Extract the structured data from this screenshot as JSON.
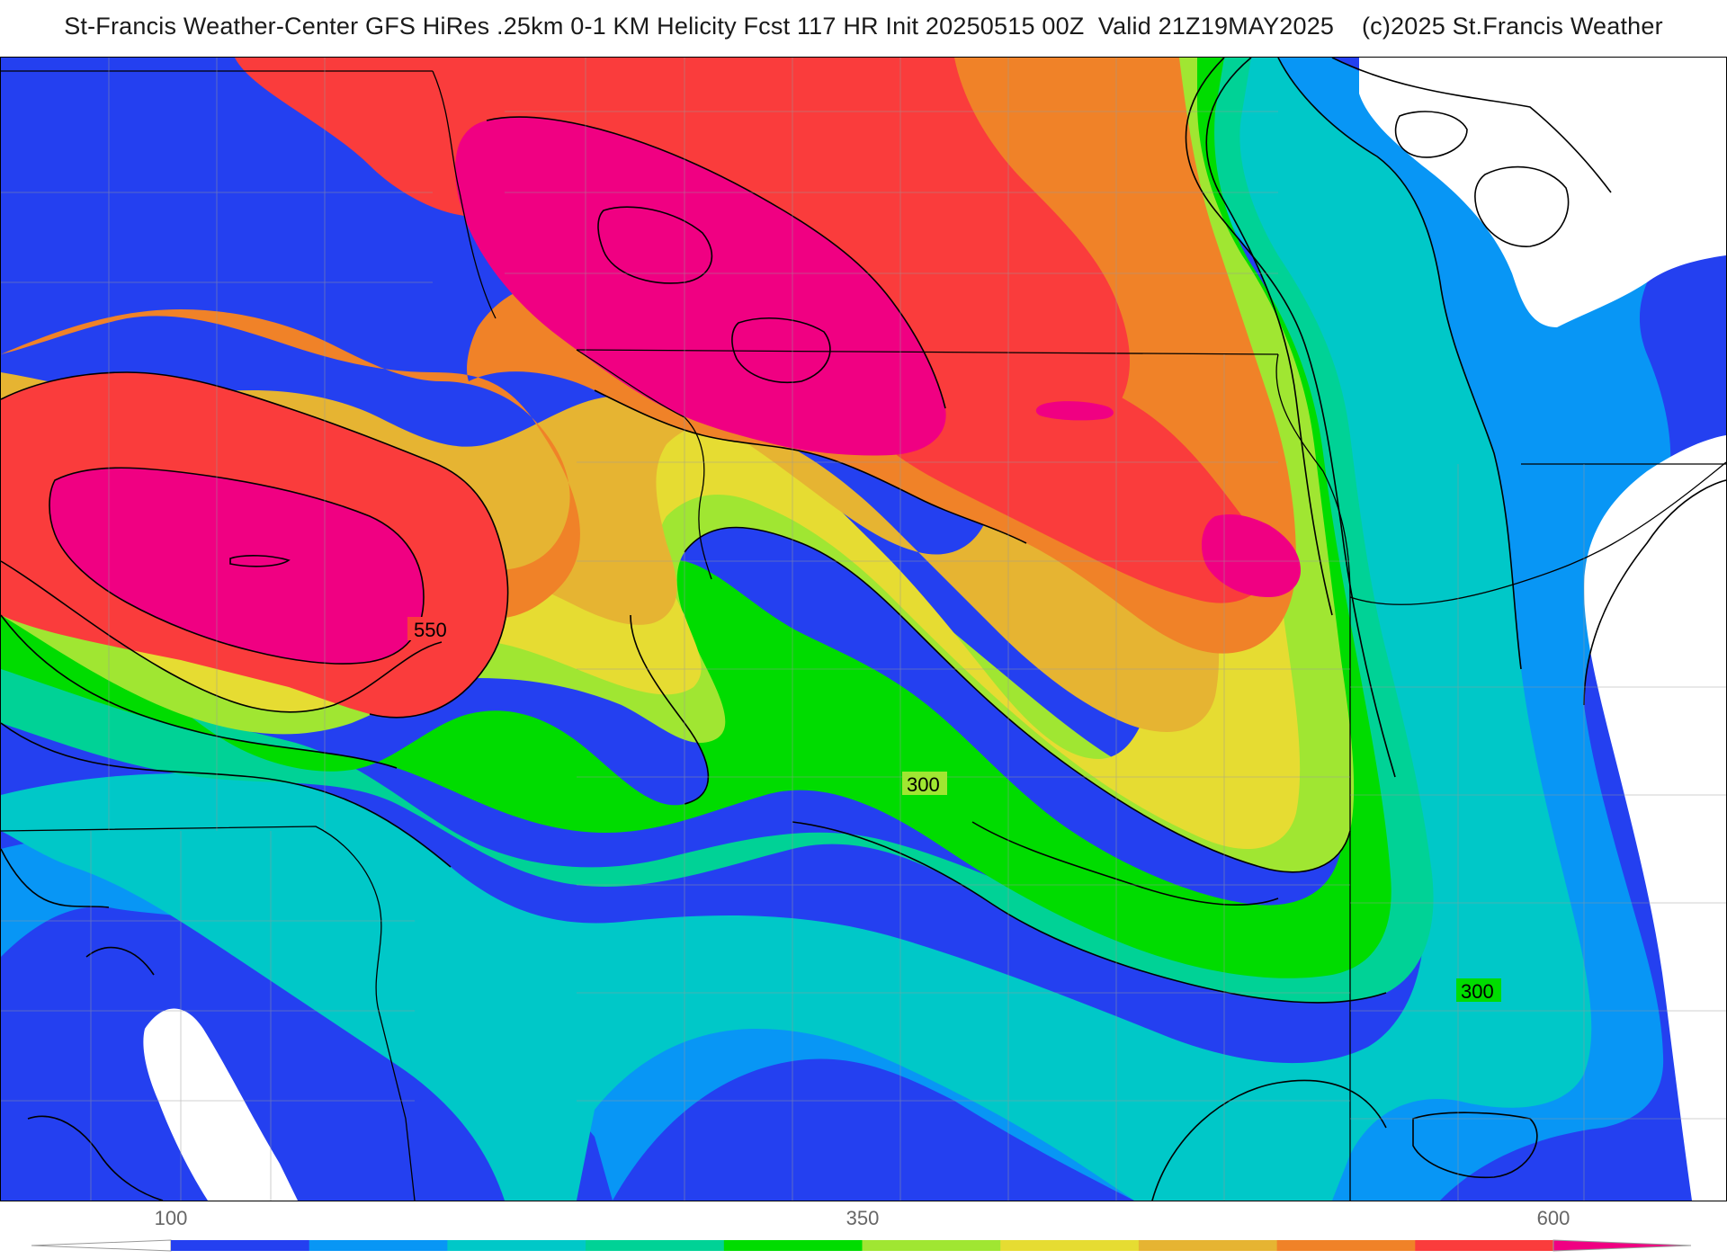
{
  "title": "St-Francis Weather-Center GFS HiRes .25km 0-1 KM Helicity Fcst 117 HR Init 20250515 00Z  Valid 21Z19MAY2025    (c)2025 St.Francis Weather",
  "map": {
    "field": "0-1 KM Helicity",
    "contour_labels": [
      "550",
      "300",
      "300"
    ]
  },
  "legend": {
    "tick_labels": [
      "100",
      "350",
      "600"
    ],
    "colors": [
      "#2440f0",
      "#0896f5",
      "#00c8c8",
      "#00d296",
      "#00dc00",
      "#a0e632",
      "#e6dc32",
      "#e6b432",
      "#f08228",
      "#fa3c3c",
      "#f00082"
    ]
  },
  "colors": {
    "out_of_range": "#ffffff",
    "state_lines": "#000000",
    "county_lines": "#999999"
  }
}
